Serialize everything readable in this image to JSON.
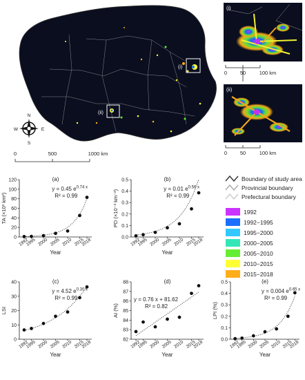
{
  "map": {
    "compass": {
      "n": "N",
      "s": "S",
      "e": "E",
      "w": "W"
    },
    "scale_main": {
      "ticks": [
        "0",
        "500",
        "1000 km"
      ]
    },
    "inset_i_label": "(i)",
    "inset_ii_label": "(ii)",
    "inset_i": {
      "tag": "(i)",
      "ticks": [
        "0",
        "50",
        "100 km"
      ]
    },
    "inset_ii": {
      "tag": "(ii)",
      "ticks": [
        "0",
        "50",
        "100 km"
      ]
    }
  },
  "legend": {
    "lines": [
      {
        "label": "Boundary of study area",
        "color": "#333333"
      },
      {
        "label": "Provincial boundary",
        "color": "#aaaaaa"
      },
      {
        "label": "Prefectural boundary",
        "color": "#cccccc"
      }
    ],
    "periods": [
      {
        "label": "1992",
        "color": "#cc33ff"
      },
      {
        "label": "1992−1995",
        "color": "#1a6fff"
      },
      {
        "label": "1995−2000",
        "color": "#33c8ff"
      },
      {
        "label": "2000−2005",
        "color": "#33e6b8"
      },
      {
        "label": "2005−2010",
        "color": "#66ee33"
      },
      {
        "label": "2010−2015",
        "color": "#ffff33"
      },
      {
        "label": "2015−2018",
        "color": "#ffad1a"
      }
    ]
  },
  "chart_data": [
    {
      "id": "a",
      "type": "scatter",
      "panel_label": "(a)",
      "xlabel": "Year",
      "ylabel": "TA (×10³ km²)",
      "x": [
        1992,
        1995,
        2000,
        2005,
        2010,
        2015,
        2018
      ],
      "values": [
        0.9,
        1.2,
        2.8,
        7.5,
        12.5,
        45,
        83
      ],
      "fit": {
        "a": 0.45,
        "b": 0.74
      },
      "eq_prefix": "y = 0.45 e",
      "eq_exp": "0.74 x",
      "r2": "R² = 0.99",
      "xticks": [
        "1992",
        "1995",
        "2000",
        "2005",
        "2010",
        "2015",
        "2018"
      ],
      "yticks": [
        0,
        20,
        40,
        60,
        80,
        100,
        120
      ],
      "yticklabels": [
        "0",
        "20",
        "40",
        "60",
        "80",
        "100",
        "120"
      ],
      "ylim": [
        0,
        120
      ]
    },
    {
      "id": "b",
      "type": "scatter",
      "panel_label": "(b)",
      "xlabel": "Year",
      "ylabel": "PD (×10⁻³ km⁻²)",
      "x": [
        1992,
        1995,
        2000,
        2005,
        2010,
        2015,
        2018
      ],
      "values": [
        0.01,
        0.02,
        0.04,
        0.08,
        0.115,
        0.245,
        0.385
      ],
      "fit": {
        "a": 0.01,
        "b": 0.56
      },
      "eq_prefix": "y = 0.01 e",
      "eq_exp": "0.56 x",
      "r2": "R² = 0.99",
      "xticks": [
        "1992",
        "1995",
        "2000",
        "2005",
        "2010",
        "2015",
        "2018"
      ],
      "yticks": [
        0,
        0.1,
        0.2,
        0.3,
        0.4,
        0.5
      ],
      "yticklabels": [
        "0.0",
        "0.1",
        "0.2",
        "0.3",
        "0.4",
        "0.5"
      ],
      "ylim": [
        0,
        0.5
      ]
    },
    {
      "id": "c",
      "type": "scatter",
      "panel_label": "(c)",
      "xlabel": "Year",
      "ylabel": "LSI",
      "x": [
        1992,
        1995,
        2000,
        2005,
        2010,
        2015,
        2018
      ],
      "values": [
        6.5,
        7.5,
        11,
        16,
        19,
        29,
        36.5
      ],
      "fit": {
        "a": 4.52,
        "b": 0.3
      },
      "eq_prefix": "y = 4.52 e",
      "eq_exp": "0.30 x",
      "r2": "R² = 0.99",
      "xticks": [
        "1992",
        "1995",
        "2000",
        "2005",
        "2010",
        "2015",
        "2018"
      ],
      "yticks": [
        0,
        10,
        20,
        30,
        40
      ],
      "yticklabels": [
        "0",
        "10",
        "20",
        "30",
        "40"
      ],
      "ylim": [
        0,
        40
      ]
    },
    {
      "id": "d",
      "type": "scatter",
      "panel_label": "(d)",
      "xlabel": "Year",
      "ylabel": "AI (%)",
      "x": [
        1992,
        1995,
        2000,
        2005,
        2010,
        2015,
        2018
      ],
      "values": [
        82.8,
        83.8,
        83.3,
        84.1,
        84.3,
        86.8,
        87.6
      ],
      "fit": {
        "linear": true,
        "m": 0.76,
        "c": 81.62
      },
      "eq_prefix": "y = 0.76 x + 81.62",
      "eq_exp": "",
      "r2": "R² = 0.82",
      "xticks": [
        "1992",
        "1995",
        "2000",
        "2005",
        "2010",
        "2015",
        "2018"
      ],
      "yticks": [
        82,
        83,
        84,
        85,
        86,
        87,
        88
      ],
      "yticklabels": [
        "82",
        "83",
        "84",
        "85",
        "86",
        "87",
        "88"
      ],
      "ylim": [
        82,
        88
      ]
    },
    {
      "id": "e",
      "type": "scatter",
      "panel_label": "(e)",
      "xlabel": "Year",
      "ylabel": "LPI (%)",
      "x": [
        1992,
        1995,
        2000,
        2005,
        2010,
        2015,
        2018
      ],
      "values": [
        0.005,
        0.01,
        0.03,
        0.065,
        0.09,
        0.2,
        0.405
      ],
      "fit": {
        "a": 0.004,
        "b": 0.65
      },
      "eq_prefix": "y = 0.004 e",
      "eq_exp": "0.65 x",
      "r2": "R² = 0.99",
      "xticks": [
        "1992",
        "1995",
        "2000",
        "2005",
        "2010",
        "2015",
        "2018"
      ],
      "yticks": [
        0,
        0.1,
        0.2,
        0.3,
        0.4,
        0.5
      ],
      "yticklabels": [
        "0.0",
        "0.1",
        "0.2",
        "0.3",
        "0.4",
        "0.5"
      ],
      "ylim": [
        0,
        0.5
      ]
    }
  ]
}
